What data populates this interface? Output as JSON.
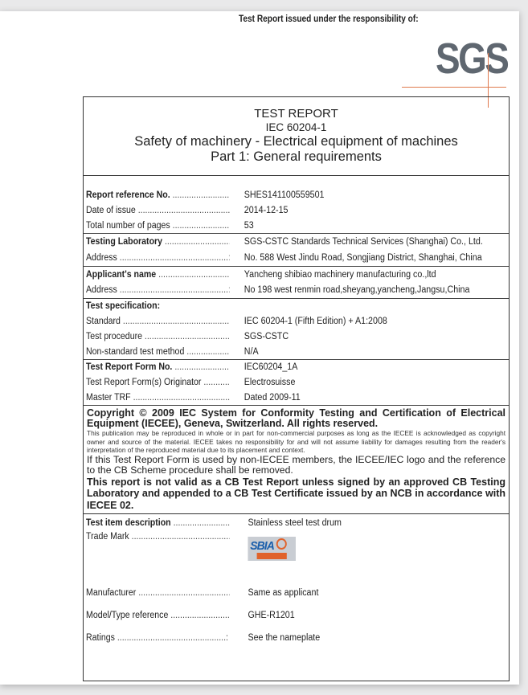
{
  "header": {
    "issued_by": "Test Report issued under the responsibility of:",
    "logo_text": "SGS"
  },
  "title": {
    "line1": "TEST REPORT",
    "line2": "IEC 60204-1",
    "line3": "Safety of machinery - Electrical equipment of machines",
    "line4": "Part 1: General requirements"
  },
  "fields": [
    {
      "label": "Report reference No.",
      "value": "SHES141100559501",
      "bold": true
    },
    {
      "label": "Date of issue",
      "value": "2014-12-15"
    },
    {
      "label": "Total number of pages",
      "value": "53"
    },
    {
      "label": "Testing Laboratory",
      "value": "SGS-CSTC Standards Technical Services (Shanghai) Co., Ltd.",
      "bold": true
    },
    {
      "label": "Address",
      "value": "No. 588 West Jindu Road, Songjiang District, Shanghai, China"
    },
    {
      "label": "Applicant's name",
      "value": "Yancheng shibiao machinery manufacturing co.,ltd",
      "bold": true
    },
    {
      "label": "Address",
      "value": "No 198 west renmin road,sheyang,yancheng,Jangsu,China"
    },
    {
      "label": "Test specification:",
      "value": "",
      "bold": true
    },
    {
      "label": "Standard",
      "value": "IEC 60204-1 (Fifth Edition) + A1:2008"
    },
    {
      "label": "Test procedure",
      "value": "SGS-CSTC"
    },
    {
      "label": "Non-standard test method",
      "value": "N/A"
    },
    {
      "label": "Test Report Form No.",
      "value": "IEC60204_1A",
      "bold": true
    },
    {
      "label": "Test Report Form(s) Originator",
      "value": "Electrosuisse"
    },
    {
      "label": "Master TRF",
      "value": "Dated 2009-11"
    },
    {
      "label": "Test item description",
      "value": "Stainless steel test drum",
      "bold": true
    },
    {
      "label": "Trade Mark",
      "value": ""
    },
    {
      "label": "Manufacturer",
      "value": "Same as applicant"
    },
    {
      "label": "Model/Type reference",
      "value": "GHE-R1201"
    },
    {
      "label": "Ratings",
      "value": "See the nameplate"
    }
  ],
  "copyright": {
    "c1": "Copyright © 2009 IEC System for Conformity Testing and Certification of Electrical Equipment (IECEE), Geneva, Switzerland. All rights reserved.",
    "c2": "This publication may be reproduced in whole or in part for non-commercial purposes as long as the IECEE is acknowledged as copyright owner and source of the material. IECEE takes no responsibility for and will not assume liability for damages resulting from the reader's interpretation of the reproduced material due to its placement and context.",
    "c3": "If this Test Report Form is used by non-IECEE members, the IECEE/IEC logo and the reference to the CB Scheme procedure shall be removed.",
    "c4": "This report is not valid as a CB Test Report unless signed by an approved CB Testing Laboratory and appended to a CB Test Certificate issued by an NCB in accordance with IECEE 02."
  },
  "trademark_logo_text": "SBIA",
  "colors": {
    "logo_gray": "#5f6770",
    "logo_line": "#e07a4e",
    "trademark_blue": "#1b5fab",
    "trademark_orange": "#e0622a"
  }
}
